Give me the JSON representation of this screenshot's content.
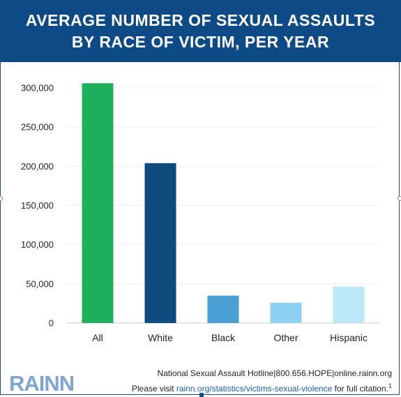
{
  "header": {
    "title_line1": "AVERAGE NUMBER OF SEXUAL ASSAULTS",
    "title_line2": "BY RACE OF VICTIM, PER YEAR"
  },
  "chart_data": {
    "type": "bar",
    "categories": [
      "All",
      "White",
      "Black",
      "Other",
      "Hispanic"
    ],
    "values": [
      306000,
      204000,
      35000,
      26000,
      46500
    ],
    "colors": [
      "#1fae5b",
      "#0e4a7d",
      "#4a9fd4",
      "#8fd0f5",
      "#bde8f8"
    ],
    "title": "AVERAGE NUMBER OF SEXUAL ASSAULTS BY RACE OF VICTIM, PER YEAR",
    "xlabel": "",
    "ylabel": "",
    "ylim": [
      0,
      300000
    ],
    "yticks": [
      0,
      50000,
      100000,
      150000,
      200000,
      250000,
      300000
    ],
    "ytick_labels": [
      "0",
      "50,000",
      "100,000",
      "150,000",
      "200,000",
      "250,000",
      "300,000"
    ],
    "grid": true,
    "legend": "none"
  },
  "footer": {
    "logo": "RAINN",
    "hotline": "National Sexual Assault Hotline|800.656.HOPE|online.rainn.org",
    "citation_prefix": "Please visit ",
    "citation_link": "rainn.org/statistics/victims-sexual-violence",
    "citation_suffix": " for full citation.",
    "citation_ref": "1"
  }
}
